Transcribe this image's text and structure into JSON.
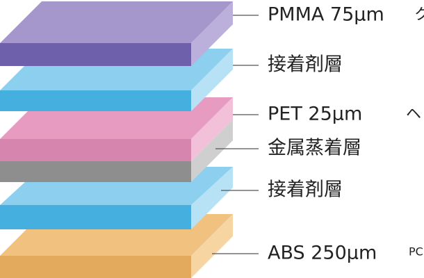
{
  "layers": [
    {
      "label": "PMMA 75μm",
      "note": "ク"
    },
    {
      "label": "接着剤層"
    },
    {
      "label": "PET 25μm",
      "note": "ヘ"
    },
    {
      "label": "金属蒸着層"
    },
    {
      "label": "接着剤層"
    },
    {
      "label": "ABS 250μm",
      "note": "PC"
    }
  ]
}
